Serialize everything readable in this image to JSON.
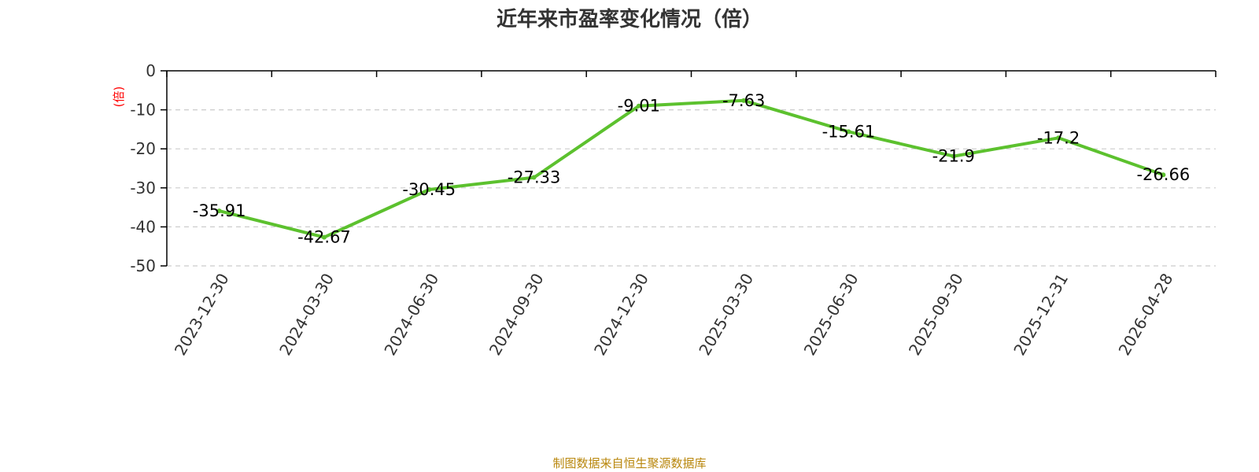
{
  "chart_data": {
    "type": "line",
    "title": "近年来市盈率变化情况（倍）",
    "ylabel": "(倍)",
    "xlabel": "",
    "categories": [
      "2023-12-30",
      "2024-03-30",
      "2024-06-30",
      "2024-09-30",
      "2024-12-30",
      "2025-03-30",
      "2025-06-30",
      "2025-09-30",
      "2025-12-31",
      "2026-04-28"
    ],
    "values": [
      -35.91,
      -42.67,
      -30.45,
      -27.33,
      -9.01,
      -7.63,
      -15.61,
      -21.9,
      -17.2,
      -26.66
    ],
    "data_labels": [
      "-35.91",
      "-42.67",
      "-30.45",
      "-27.33",
      "-9.01",
      "-7.63",
      "-15.61",
      "-21.9",
      "-17.2",
      "-26.66"
    ],
    "ylim": [
      -50,
      0
    ],
    "yticks": [
      0,
      -10,
      -20,
      -30,
      -40,
      -50
    ],
    "ytick_labels": [
      "0",
      "-10",
      "-20",
      "-30",
      "-40",
      "-50"
    ],
    "grid": true,
    "line_color": "#5cc12e",
    "grid_color": "#cccccc",
    "unit_color": "#ff0000"
  },
  "source_note": "制图数据来自恒生聚源数据库",
  "source_color": "#b8860b"
}
